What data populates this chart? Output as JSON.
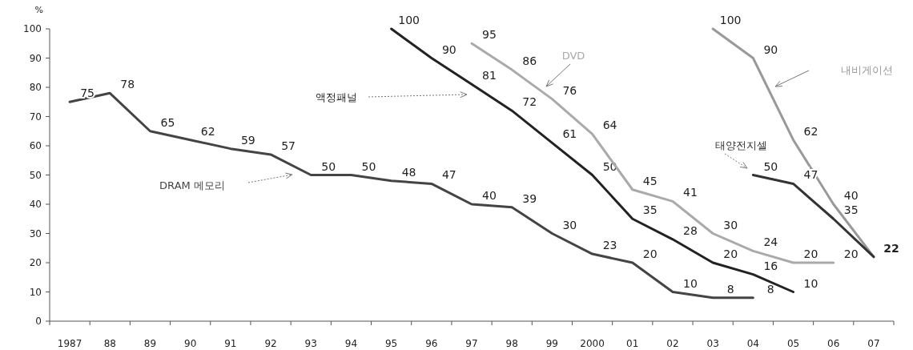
{
  "chart_data": {
    "type": "line",
    "ylabel": "%",
    "categories": [
      "1987",
      "88",
      "89",
      "90",
      "91",
      "92",
      "93",
      "94",
      "95",
      "96",
      "97",
      "98",
      "99",
      "2000",
      "01",
      "02",
      "03",
      "04",
      "05",
      "06",
      "07"
    ],
    "ylim": [
      0,
      100
    ],
    "yticks": [
      0,
      10,
      20,
      30,
      40,
      50,
      60,
      70,
      80,
      90,
      100
    ],
    "grid": false,
    "series": [
      {
        "name": "DRAM 메모리",
        "color": "#444444",
        "values": [
          75,
          78,
          65,
          62,
          59,
          57,
          50,
          50,
          48,
          47,
          40,
          39,
          30,
          23,
          20,
          10,
          8,
          8,
          null,
          null,
          null
        ],
        "value_labels": [
          "75",
          "78",
          "65",
          "62",
          "59",
          "57",
          "50",
          "50",
          "48",
          "47",
          "40",
          "39",
          "30",
          "23",
          "20",
          "10",
          "8",
          "8",
          null,
          null,
          null
        ]
      },
      {
        "name": "액정패널",
        "color": "#222222",
        "values": [
          null,
          null,
          null,
          null,
          null,
          null,
          null,
          null,
          100,
          90,
          81,
          72,
          61,
          50,
          35,
          28,
          20,
          16,
          10,
          null,
          null
        ],
        "value_labels": [
          null,
          null,
          null,
          null,
          null,
          null,
          null,
          null,
          "100",
          "90",
          "81",
          "72",
          "61",
          "50",
          "35",
          "28",
          "20",
          "16",
          "10",
          null,
          null
        ]
      },
      {
        "name": "DVD",
        "color": "#aaaaaa",
        "values": [
          null,
          null,
          null,
          null,
          null,
          null,
          null,
          null,
          null,
          null,
          95,
          86,
          76,
          64,
          45,
          41,
          30,
          24,
          20,
          20,
          null
        ],
        "value_labels": [
          null,
          null,
          null,
          null,
          null,
          null,
          null,
          null,
          null,
          null,
          "95",
          "86",
          "76",
          "64",
          "45",
          "41",
          "30",
          "24",
          "20",
          "20",
          null
        ]
      },
      {
        "name": "내비게이션",
        "color": "#999999",
        "values": [
          null,
          null,
          null,
          null,
          null,
          null,
          null,
          null,
          null,
          null,
          null,
          null,
          null,
          null,
          null,
          null,
          100,
          90,
          62,
          40,
          22
        ],
        "value_labels": [
          null,
          null,
          null,
          null,
          null,
          null,
          null,
          null,
          null,
          null,
          null,
          null,
          null,
          null,
          null,
          null,
          "100",
          "90",
          "62",
          "40",
          null
        ]
      },
      {
        "name": "태양전지셀",
        "color": "#333333",
        "values": [
          null,
          null,
          null,
          null,
          null,
          null,
          null,
          null,
          null,
          null,
          null,
          null,
          null,
          null,
          null,
          null,
          null,
          50,
          47,
          35,
          22
        ],
        "value_labels": [
          null,
          null,
          null,
          null,
          null,
          null,
          null,
          null,
          null,
          null,
          null,
          null,
          null,
          null,
          null,
          null,
          null,
          "50",
          "47",
          "35",
          "22"
        ]
      }
    ]
  }
}
